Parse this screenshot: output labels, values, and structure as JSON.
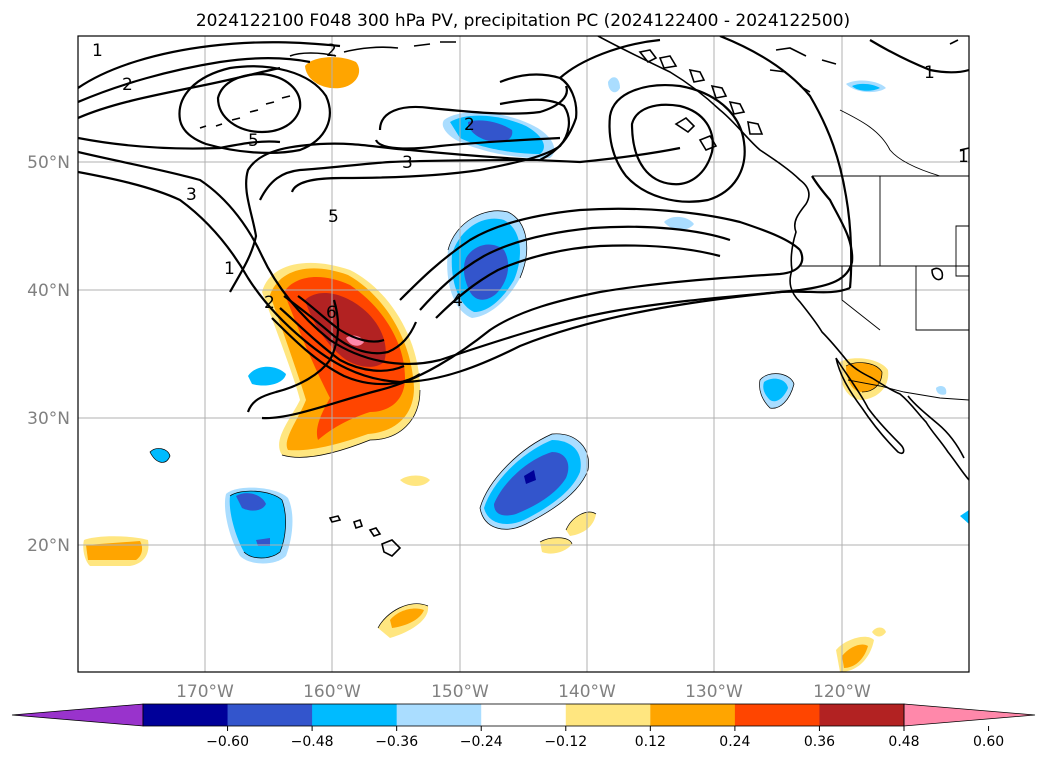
{
  "title": "2024122100 F048 300 hPa PV, precipitation PC (2024122400 - 2024122500)",
  "lat_labels": [
    "50°N",
    "40°N",
    "30°N",
    "20°N"
  ],
  "lon_labels": [
    "170°W",
    "160°W",
    "150°W",
    "140°W",
    "130°W",
    "120°W"
  ],
  "contour_labels": [
    "1",
    "2",
    "1",
    "2",
    "5",
    "3",
    "3",
    "5",
    "1",
    "2",
    "6",
    "2",
    "4",
    "1"
  ],
  "colorbar": {
    "ticks": [
      "−0.60",
      "−0.48",
      "−0.36",
      "−0.24",
      "−0.12",
      "0.12",
      "0.24",
      "0.36",
      "0.48",
      "0.60"
    ],
    "colors": [
      "#9933cc",
      "#000099",
      "#3355cc",
      "#00bbff",
      "#aaddff",
      "#ffffff",
      "#ffe680",
      "#ffa500",
      "#ff4500",
      "#b22222",
      "#ff88aa"
    ]
  },
  "colors": {
    "pos1": "#ffe680",
    "pos2": "#ffa500",
    "pos3": "#ff4500",
    "pos4": "#b22222",
    "pos5": "#ff88aa",
    "neg1": "#aaddff",
    "neg2": "#00bbff",
    "neg3": "#3355cc",
    "neg4": "#000099",
    "neg5": "#9933cc",
    "grid": "#b0b0b0",
    "axis_text": "#808080"
  }
}
